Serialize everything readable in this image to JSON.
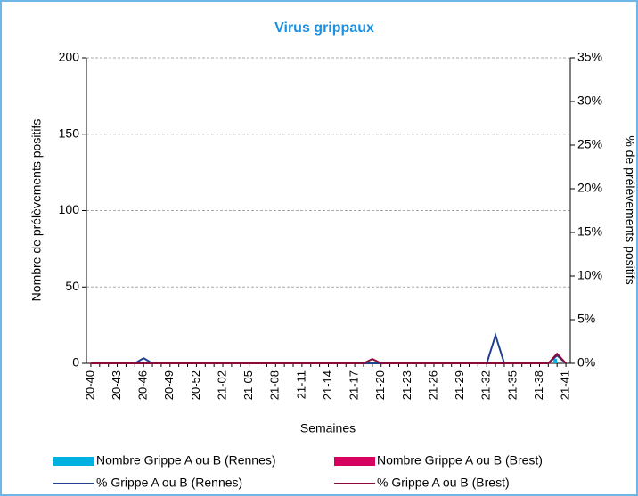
{
  "chart_data": {
    "type": "bar",
    "title": "Virus grippaux",
    "x_label": "Semaines",
    "y_label": "Nombre de prélèvements positifs",
    "y2_label": "% de prélèvements positifs",
    "categories": [
      "20-40",
      null,
      null,
      "20-43",
      null,
      null,
      "20-46",
      null,
      null,
      "20-49",
      null,
      null,
      "20-52",
      null,
      null,
      "21-02",
      null,
      null,
      "21-05",
      null,
      null,
      "21-08",
      null,
      null,
      "21-11",
      null,
      null,
      "21-14",
      null,
      null,
      "21-17",
      null,
      null,
      "21-20",
      null,
      null,
      "21-23",
      null,
      null,
      "21-26",
      null,
      null,
      "21-29",
      null,
      null,
      "21-32",
      null,
      null,
      "21-35",
      null,
      null,
      "21-38",
      null,
      null,
      "21-41"
    ],
    "series": [
      {
        "name": "Nombre Grippe A ou B (Rennes)",
        "type": "bar",
        "color": "#00b0e0",
        "values": [
          0,
          0,
          0,
          0,
          0,
          0,
          0,
          0,
          0,
          0,
          0,
          0,
          0,
          0,
          0,
          0,
          0,
          0,
          0,
          0,
          0,
          0,
          0,
          0,
          0,
          0,
          0,
          0,
          0,
          0,
          0,
          0,
          0,
          0,
          0,
          0,
          0,
          0,
          0,
          0,
          0,
          0,
          0,
          0,
          0,
          0,
          0,
          0,
          0,
          0,
          0,
          0,
          0,
          3,
          0
        ]
      },
      {
        "name": "Nombre Grippe A ou B (Brest)",
        "type": "bar",
        "color": "#d6005e",
        "values": [
          0,
          0,
          0,
          0,
          0,
          0,
          0,
          0,
          0,
          0,
          0,
          0,
          0,
          0,
          0,
          0,
          0,
          0,
          0,
          0,
          0,
          0,
          0,
          0,
          0,
          0,
          0,
          0,
          0,
          0,
          0,
          0,
          0,
          0,
          0,
          0,
          0,
          0,
          0,
          0,
          0,
          0,
          0,
          0,
          0,
          0,
          0,
          0,
          0,
          0,
          0,
          0,
          0,
          0,
          0
        ]
      },
      {
        "name": "% Grippe A ou B (Rennes)",
        "type": "line",
        "axis": "y2",
        "color": "#1f3f8f",
        "values": [
          0,
          0,
          0,
          0,
          0,
          0,
          0.6,
          0,
          0,
          0,
          0,
          0,
          0,
          0,
          0,
          0,
          0,
          0,
          0,
          0,
          0,
          0,
          0,
          0,
          0,
          0,
          0,
          0,
          0,
          0,
          0,
          0,
          0,
          0,
          0,
          0,
          0,
          0,
          0,
          0,
          0,
          0,
          0,
          0,
          0,
          0,
          3.2,
          0,
          0,
          0,
          0,
          0,
          0,
          0.9,
          0
        ]
      },
      {
        "name": "% Grippe A ou B (Brest)",
        "type": "line",
        "axis": "y2",
        "color": "#8b0a3a",
        "values": [
          0,
          0,
          0,
          0,
          0,
          0,
          0,
          0,
          0,
          0,
          0,
          0,
          0,
          0,
          0,
          0,
          0,
          0,
          0,
          0,
          0,
          0,
          0,
          0,
          0,
          0,
          0,
          0,
          0,
          0,
          0,
          0,
          0.5,
          0,
          0,
          0,
          0,
          0,
          0,
          0,
          0,
          0,
          0,
          0,
          0,
          0,
          0,
          0,
          0,
          0,
          0,
          0,
          0,
          1.1,
          0
        ]
      }
    ],
    "ylim": [
      0,
      200
    ],
    "yticks": [
      0,
      50,
      100,
      150,
      200
    ],
    "y2lim": [
      0,
      35
    ],
    "y2ticks": [
      {
        "value": 0,
        "label": "0%"
      },
      {
        "value": 5,
        "label": "5%"
      },
      {
        "value": 10,
        "label": "10%"
      },
      {
        "value": 15,
        "label": "15%"
      },
      {
        "value": 20,
        "label": "20%"
      },
      {
        "value": 25,
        "label": "25%"
      },
      {
        "value": 30,
        "label": "30%"
      },
      {
        "value": 35,
        "label": "35%"
      }
    ],
    "grid": true
  }
}
